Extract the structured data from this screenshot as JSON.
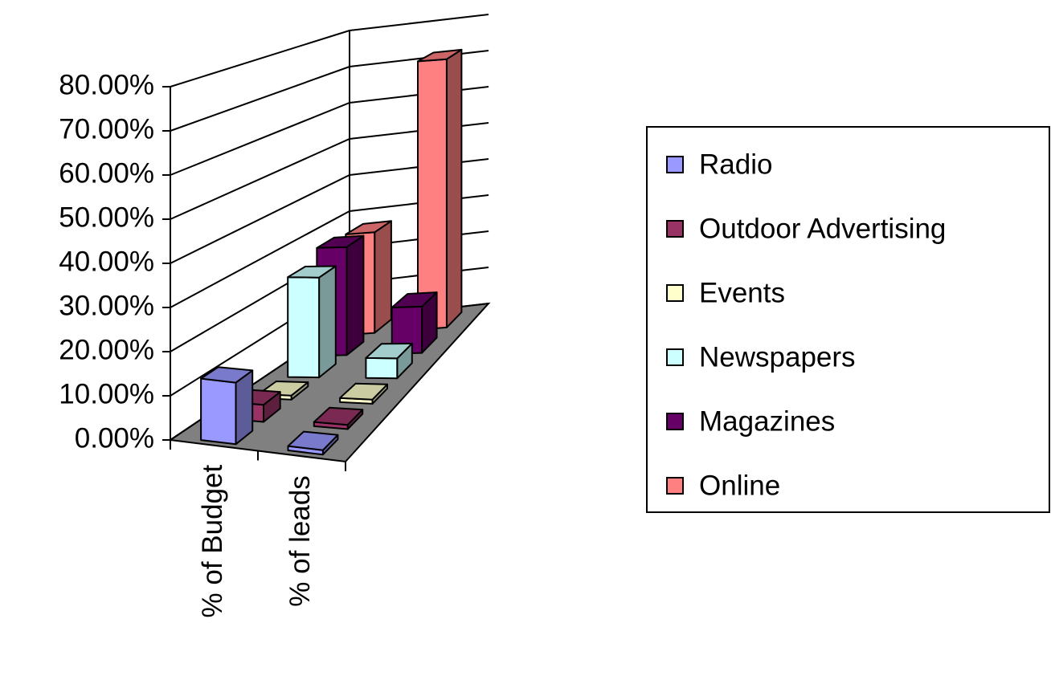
{
  "chart_data": {
    "type": "bar3d",
    "categories": [
      "% of Budget",
      "% of leads"
    ],
    "series": [
      {
        "name": "Radio",
        "color": "#9999ff",
        "values": [
          14,
          1
        ]
      },
      {
        "name": "Outdoor Advertising",
        "color": "#993366",
        "values": [
          4,
          1
        ]
      },
      {
        "name": "Events",
        "color": "#ffffcc",
        "values": [
          1,
          1
        ]
      },
      {
        "name": "Newspapers",
        "color": "#ccffff",
        "values": [
          25,
          5
        ]
      },
      {
        "name": "Magazines",
        "color": "#660066",
        "values": [
          28,
          12
        ]
      },
      {
        "name": "Online",
        "color": "#ff8080",
        "values": [
          27,
          72
        ]
      }
    ],
    "ylim": [
      0,
      80
    ],
    "yticks": [
      {
        "value": 0,
        "label": "0.00%"
      },
      {
        "value": 10,
        "label": "10.00%"
      },
      {
        "value": 20,
        "label": "20.00%"
      },
      {
        "value": 30,
        "label": "30.00%"
      },
      {
        "value": 40,
        "label": "40.00%"
      },
      {
        "value": 50,
        "label": "50.00%"
      },
      {
        "value": 60,
        "label": "60.00%"
      },
      {
        "value": 70,
        "label": "70.00%"
      },
      {
        "value": 80,
        "label": "80.00%"
      }
    ],
    "grid": true,
    "legend": "right"
  }
}
